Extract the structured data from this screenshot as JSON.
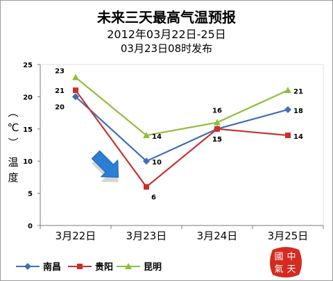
{
  "title": "未来三天最高气温预报",
  "subtitle": "2012年03月22日-25日",
  "publish_note": "03月23日08时发布",
  "colors": {
    "nanchang": "#3c6fb6",
    "guiyang": "#c8302c",
    "kunming": "#8fbe3a",
    "gridline": "#d0d0d0",
    "axis": "#7a7a7a",
    "arrow": "#2a7fd4",
    "stamp": "#d42b20"
  },
  "stamp_text": "中國天氣",
  "chart_data": {
    "type": "line",
    "title": "未来三天最高气温预报",
    "categories": [
      "3月22日",
      "3月23日",
      "3月24日",
      "3月25日"
    ],
    "ylabel": "温度（℃）",
    "xlabel": "",
    "ylim": [
      0,
      25
    ],
    "yticks": [
      0,
      5,
      10,
      15,
      20,
      25
    ],
    "grid": false,
    "legend_position": "bottom-left",
    "series": [
      {
        "name": "南昌",
        "values": [
          20,
          10,
          15,
          18
        ],
        "color": "#3c6fb6",
        "marker": "diamond"
      },
      {
        "name": "贵阳",
        "values": [
          21,
          6,
          15,
          14
        ],
        "color": "#c8302c",
        "marker": "square"
      },
      {
        "name": "昆明",
        "values": [
          23,
          14,
          16,
          21
        ],
        "color": "#8fbe3a",
        "marker": "triangle"
      }
    ],
    "annotation": "arrow-pointing-to-3月23日-drop"
  }
}
